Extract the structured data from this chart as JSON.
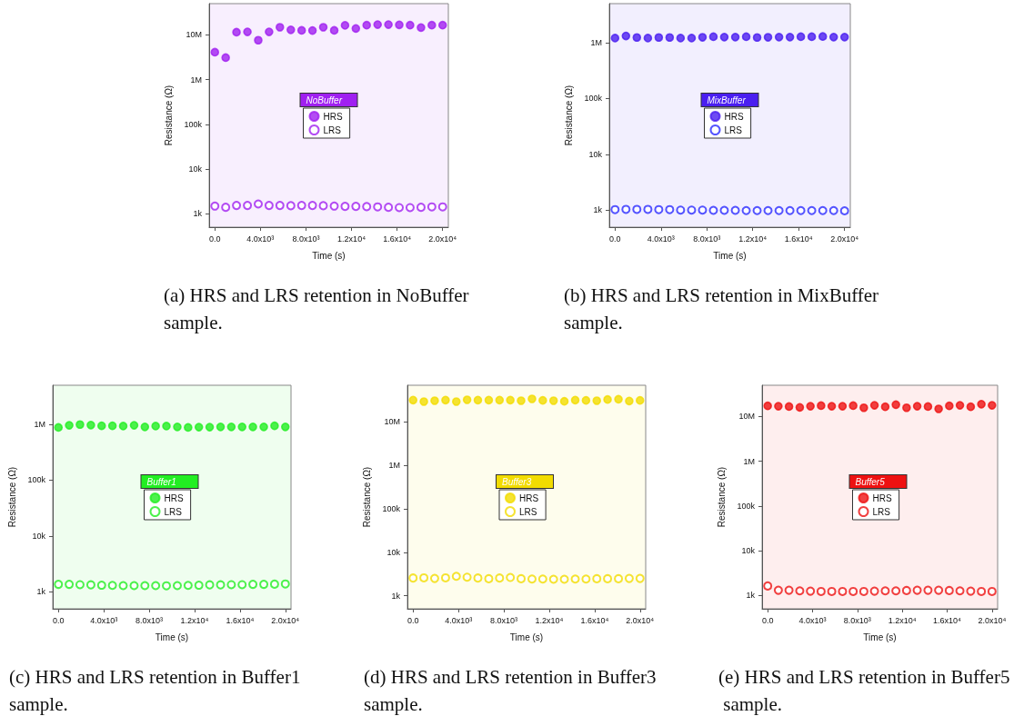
{
  "chart_data": [
    {
      "type": "scatter",
      "title": "(a) HRS and LRS retention in NoBuffer sample.",
      "xlabel": "Time (s)",
      "ylabel": "Resistance (Ω)",
      "legend_title": "NoBuffer",
      "legend": "center",
      "log": "y",
      "x": [
        0,
        950,
        1900,
        2860,
        3810,
        4760,
        5710,
        6670,
        7620,
        8570,
        9520,
        10480,
        11430,
        12380,
        13330,
        14290,
        15240,
        16190,
        17140,
        18100,
        19050,
        20000
      ],
      "xlim": [
        -500,
        20500
      ],
      "xticks": [
        {
          "value": 0,
          "label": "0.0"
        },
        {
          "value": 4000,
          "label": "4.0x10³"
        },
        {
          "value": 8000,
          "label": "8.0x10³"
        },
        {
          "value": 12000,
          "label": "1.2x10⁴"
        },
        {
          "value": 16000,
          "label": "1.6x10⁴"
        },
        {
          "value": 20000,
          "label": "2.0x10⁴"
        }
      ],
      "ylim": [
        500,
        50000000
      ],
      "yticks": [
        {
          "value": 1000,
          "label": "1k"
        },
        {
          "value": 10000,
          "label": "10k"
        },
        {
          "value": 100000,
          "label": "100k"
        },
        {
          "value": 1000000,
          "label": "1M"
        },
        {
          "value": 10000000,
          "label": "10M"
        }
      ],
      "series": [
        {
          "name": "HRS",
          "color": "#a020f0",
          "marker": "circle",
          "values": [
            4100000,
            3100000,
            11500000,
            11700000,
            7600000,
            11700000,
            14800000,
            13000000,
            12600000,
            12500000,
            14800000,
            12600000,
            16300000,
            13900000,
            16500000,
            17000000,
            17000000,
            16800000,
            16500000,
            14600000,
            16500000,
            16500000
          ]
        },
        {
          "name": "LRS",
          "color": "#a020f0",
          "marker": "open circle",
          "values": [
            1480,
            1390,
            1530,
            1530,
            1650,
            1530,
            1530,
            1510,
            1530,
            1530,
            1510,
            1480,
            1460,
            1460,
            1440,
            1420,
            1390,
            1370,
            1370,
            1390,
            1420,
            1420
          ]
        }
      ]
    },
    {
      "type": "scatter",
      "title": "(b) HRS and LRS retention in MixBuffer sample.",
      "xlabel": "Time (s)",
      "ylabel": "Resistance (Ω)",
      "legend_title": "MixBuffer",
      "legend": "center",
      "log": "y",
      "x": [
        0,
        950,
        1900,
        2860,
        3810,
        4760,
        5710,
        6670,
        7620,
        8570,
        9520,
        10480,
        11430,
        12380,
        13330,
        14290,
        15240,
        16190,
        17140,
        18100,
        19050,
        20000
      ],
      "xlim": [
        -500,
        20500
      ],
      "xticks": [
        {
          "value": 0,
          "label": "0.0"
        },
        {
          "value": 4000,
          "label": "4.0x10³"
        },
        {
          "value": 8000,
          "label": "8.0x10³"
        },
        {
          "value": 12000,
          "label": "1.2x10⁴"
        },
        {
          "value": 16000,
          "label": "1.6x10⁴"
        },
        {
          "value": 20000,
          "label": "2.0x10⁴"
        }
      ],
      "ylim": [
        500,
        5000000
      ],
      "yticks": [
        {
          "value": 1000,
          "label": "1k"
        },
        {
          "value": 10000,
          "label": "10k"
        },
        {
          "value": 100000,
          "label": "100k"
        },
        {
          "value": 1000000,
          "label": "1M"
        }
      ],
      "series": [
        {
          "name": "HRS",
          "color": "#4a1ef0",
          "marker": "circle",
          "values": [
            1210000,
            1320000,
            1240000,
            1210000,
            1240000,
            1240000,
            1210000,
            1210000,
            1250000,
            1280000,
            1260000,
            1260000,
            1280000,
            1240000,
            1250000,
            1260000,
            1260000,
            1280000,
            1280000,
            1290000,
            1260000,
            1260000
          ]
        },
        {
          "name": "LRS",
          "color": "#2a2aff",
          "marker": "open circle",
          "values": [
            1030,
            1040,
            1040,
            1040,
            1030,
            1030,
            1010,
            1010,
            1010,
            1000,
            1000,
            1000,
            990,
            990,
            990,
            990,
            990,
            990,
            990,
            990,
            990,
            980
          ]
        }
      ]
    },
    {
      "type": "scatter",
      "title": "(c) HRS and LRS retention in Buffer1 sample.",
      "xlabel": "Time (s)",
      "ylabel": "Resistance (Ω)",
      "legend_title": "Buffer1",
      "legend": "center",
      "log": "y",
      "x": [
        0,
        950,
        1900,
        2860,
        3810,
        4760,
        5710,
        6670,
        7620,
        8570,
        9520,
        10480,
        11430,
        12380,
        13330,
        14290,
        15240,
        16190,
        17140,
        18100,
        19050,
        20000
      ],
      "xlim": [
        -500,
        20500
      ],
      "xticks": [
        {
          "value": 0,
          "label": "0.0"
        },
        {
          "value": 4000,
          "label": "4.0x10³"
        },
        {
          "value": 8000,
          "label": "8.0x10³"
        },
        {
          "value": 12000,
          "label": "1.2x10⁴"
        },
        {
          "value": 16000,
          "label": "1.6x10⁴"
        },
        {
          "value": 20000,
          "label": "2.0x10⁴"
        }
      ],
      "ylim": [
        500,
        5000000
      ],
      "yticks": [
        {
          "value": 1000,
          "label": "1k"
        },
        {
          "value": 10000,
          "label": "10k"
        },
        {
          "value": 100000,
          "label": "100k"
        },
        {
          "value": 1000000,
          "label": "1M"
        }
      ],
      "series": [
        {
          "name": "HRS",
          "color": "#22ee22",
          "marker": "circle",
          "values": [
            880000,
            960000,
            990000,
            970000,
            940000,
            940000,
            930000,
            960000,
            900000,
            930000,
            930000,
            900000,
            880000,
            890000,
            890000,
            900000,
            900000,
            900000,
            900000,
            900000,
            940000,
            900000
          ]
        },
        {
          "name": "LRS",
          "color": "#22ee22",
          "marker": "open circle",
          "values": [
            1370,
            1370,
            1350,
            1340,
            1320,
            1310,
            1300,
            1300,
            1300,
            1300,
            1290,
            1300,
            1310,
            1320,
            1340,
            1340,
            1350,
            1350,
            1370,
            1370,
            1380,
            1390
          ]
        }
      ]
    },
    {
      "type": "scatter",
      "title": "(d) HRS and LRS retention in Buffer3 sample.",
      "xlabel": "Time (s)",
      "ylabel": "Resistance (Ω)",
      "legend_title": "Buffer3",
      "legend": "center",
      "log": "y",
      "x": [
        0,
        950,
        1900,
        2860,
        3810,
        4760,
        5710,
        6670,
        7620,
        8570,
        9520,
        10480,
        11430,
        12380,
        13330,
        14290,
        15240,
        16190,
        17140,
        18100,
        19050,
        20000
      ],
      "xlim": [
        -500,
        20500
      ],
      "xticks": [
        {
          "value": 0,
          "label": "0.0"
        },
        {
          "value": 4000,
          "label": "4.0x10³"
        },
        {
          "value": 8000,
          "label": "8.0x10³"
        },
        {
          "value": 12000,
          "label": "1.2x10⁴"
        },
        {
          "value": 16000,
          "label": "1.6x10⁴"
        },
        {
          "value": 20000,
          "label": "2.0x10⁴"
        }
      ],
      "ylim": [
        500,
        70000000
      ],
      "yticks": [
        {
          "value": 1000,
          "label": "1k"
        },
        {
          "value": 10000,
          "label": "10k"
        },
        {
          "value": 100000,
          "label": "100k"
        },
        {
          "value": 1000000,
          "label": "1M"
        },
        {
          "value": 10000000,
          "label": "10M"
        }
      ],
      "series": [
        {
          "name": "HRS",
          "color": "#f2dc00",
          "marker": "circle",
          "values": [
            31900000,
            29400000,
            30900000,
            31900000,
            29400000,
            32400000,
            31900000,
            31900000,
            31900000,
            31900000,
            30900000,
            34000000,
            31400000,
            30900000,
            29900000,
            31900000,
            31400000,
            30900000,
            32900000,
            33400000,
            30400000,
            31400000
          ]
        },
        {
          "name": "LRS",
          "color": "#f2dc00",
          "marker": "open circle",
          "values": [
            2550,
            2580,
            2500,
            2580,
            2800,
            2670,
            2550,
            2460,
            2550,
            2630,
            2460,
            2420,
            2420,
            2390,
            2390,
            2420,
            2420,
            2460,
            2460,
            2460,
            2500,
            2500
          ]
        }
      ]
    },
    {
      "type": "scatter",
      "title": "(e) HRS and LRS retention in Buffer5 sample.",
      "xlabel": "Time (s)",
      "ylabel": "Resistance (Ω)",
      "legend_title": "Buffer5",
      "legend": "center",
      "log": "y",
      "x": [
        0,
        950,
        1900,
        2860,
        3810,
        4760,
        5710,
        6670,
        7620,
        8570,
        9520,
        10480,
        11430,
        12380,
        13330,
        14290,
        15240,
        16190,
        17140,
        18100,
        19050,
        20000
      ],
      "xlim": [
        -500,
        20500
      ],
      "xticks": [
        {
          "value": 0,
          "label": "0.0"
        },
        {
          "value": 4000,
          "label": "4.0x10³"
        },
        {
          "value": 8000,
          "label": "8.0x10³"
        },
        {
          "value": 12000,
          "label": "1.2x10⁴"
        },
        {
          "value": 16000,
          "label": "1.6x10⁴"
        },
        {
          "value": 20000,
          "label": "2.0x10⁴"
        }
      ],
      "ylim": [
        500,
        50000000
      ],
      "yticks": [
        {
          "value": 1000,
          "label": "1k"
        },
        {
          "value": 10000,
          "label": "10k"
        },
        {
          "value": 100000,
          "label": "100k"
        },
        {
          "value": 1000000,
          "label": "1M"
        },
        {
          "value": 10000000,
          "label": "10M"
        }
      ],
      "series": [
        {
          "name": "HRS",
          "color": "#ee1111",
          "marker": "circle",
          "values": [
            17300000,
            17000000,
            16700000,
            16000000,
            17000000,
            17500000,
            17000000,
            17000000,
            17500000,
            15700000,
            17800000,
            16500000,
            18400000,
            15700000,
            17000000,
            16700000,
            14800000,
            17300000,
            17800000,
            16500000,
            18900000,
            17800000
          ]
        },
        {
          "name": "LRS",
          "color": "#ee1111",
          "marker": "open circle",
          "values": [
            1620,
            1300,
            1300,
            1260,
            1240,
            1220,
            1220,
            1220,
            1220,
            1220,
            1240,
            1260,
            1260,
            1280,
            1300,
            1300,
            1300,
            1280,
            1260,
            1240,
            1220,
            1220
          ]
        }
      ]
    }
  ]
}
